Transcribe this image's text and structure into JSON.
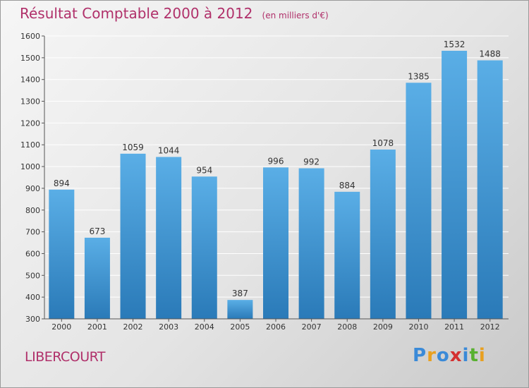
{
  "header": {
    "title": "Résultat Comptable 2000 à 2012",
    "subtitle": "(en milliers d'€)"
  },
  "place": "LIBERCOURT",
  "logo": {
    "text": "Proxiti",
    "letters": [
      {
        "ch": "P",
        "color": "#3a8ad8"
      },
      {
        "ch": "r",
        "color": "#e8a020"
      },
      {
        "ch": "o",
        "color": "#3a8ad8"
      },
      {
        "ch": "x",
        "color": "#d43030"
      },
      {
        "ch": "i",
        "color": "#3a8ad8"
      },
      {
        "ch": "t",
        "color": "#58b030"
      },
      {
        "ch": "i",
        "color": "#e8a020"
      }
    ]
  },
  "chart_data": {
    "type": "bar",
    "title": "Résultat Comptable 2000 à 2012",
    "subtitle": "(en milliers d'€)",
    "categories": [
      "2000",
      "2001",
      "2002",
      "2003",
      "2004",
      "2005",
      "2006",
      "2007",
      "2008",
      "2009",
      "2010",
      "2011",
      "2012"
    ],
    "values": [
      894,
      673,
      1059,
      1044,
      954,
      387,
      996,
      992,
      884,
      1078,
      1385,
      1532,
      1488
    ],
    "value_labels": [
      "894",
      "673",
      "1059",
      "1044",
      "954",
      "387",
      "996",
      "992",
      "884",
      "1078",
      "1385",
      "1532",
      "1488"
    ],
    "ylim": [
      300,
      1600
    ],
    "yticks": [
      300,
      400,
      500,
      600,
      700,
      800,
      900,
      1000,
      1100,
      1200,
      1300,
      1400,
      1500,
      1600
    ],
    "ytick_labels": [
      "300",
      "400",
      "500",
      "600",
      "700",
      "800",
      "900",
      "1000",
      "1100",
      "1200",
      "1300",
      "1400",
      "1500",
      "1600"
    ],
    "grid": true,
    "colors": {
      "bar_top": "#5aaee6",
      "bar_bottom": "#2a7ab8",
      "grid": "#ffffff",
      "text": "#333333",
      "title": "#b0306a"
    }
  }
}
